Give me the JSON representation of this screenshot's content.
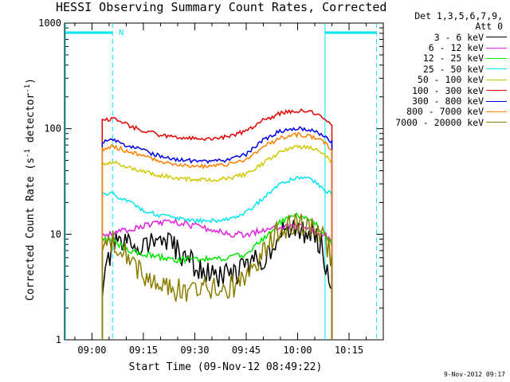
{
  "chart_data": {
    "type": "line",
    "title": "HESSI Observing Summary Count Rates, Corrected",
    "xlabel": "Start Time (09-Nov-12 08:49:22)",
    "ylabel_main": "Corrected Count Rate (s",
    "ylabel_sup1": "-1",
    "ylabel_mid": " detector",
    "ylabel_sup2": "-1",
    "ylabel_end": ")",
    "ylabel": "Corrected Count Rate (s-1 detector-1)",
    "yscale": "log",
    "ylim": [
      1,
      1000
    ],
    "yticks": [
      {
        "value": 1,
        "label": "1"
      },
      {
        "value": 10,
        "label": "10"
      },
      {
        "value": 100,
        "label": "100"
      },
      {
        "value": 1000,
        "label": "1000"
      }
    ],
    "xlim": [
      "08:52",
      "10:25"
    ],
    "xticks": [
      {
        "value": "09:00",
        "label": "09:00"
      },
      {
        "value": "09:15",
        "label": "09:15"
      },
      {
        "value": "09:30",
        "label": "09:30"
      },
      {
        "value": "09:45",
        "label": "09:45"
      },
      {
        "value": "10:00",
        "label": "10:00"
      },
      {
        "value": "10:15",
        "label": "10:15"
      }
    ],
    "legend_header": [
      "Det 1,3,5,6,7,9,",
      "Att 0"
    ],
    "legend_placement": "right",
    "flags": {
      "night_start": "09:06",
      "night_end": "10:08",
      "night_flag_label": "N",
      "saa_end": "09:03",
      "saa_start": "10:23",
      "bar_color": "#00e5ee"
    },
    "series": [
      {
        "name": "3 - 6 keV",
        "color": "#000000",
        "x": [
          "09:03",
          "09:06",
          "09:10",
          "09:15",
          "09:20",
          "09:25",
          "09:30",
          "09:35",
          "09:40",
          "09:45",
          "09:50",
          "09:55",
          "10:00",
          "10:05",
          "10:07",
          "10:10"
        ],
        "y": [
          3,
          8,
          8,
          8,
          9,
          7,
          5,
          4,
          4,
          5,
          6,
          10,
          11,
          10,
          8,
          3
        ]
      },
      {
        "name": "6 - 12 keV",
        "color": "#e020e0",
        "x": [
          "09:03",
          "09:06",
          "09:10",
          "09:15",
          "09:20",
          "09:25",
          "09:30",
          "09:35",
          "09:40",
          "09:45",
          "09:50",
          "09:55",
          "10:00",
          "10:05",
          "10:08",
          "10:10"
        ],
        "y": [
          10,
          10,
          11,
          12,
          13,
          13,
          12,
          11,
          10,
          10,
          11,
          12,
          12,
          11,
          10,
          9
        ]
      },
      {
        "name": "12 - 25 keV",
        "color": "#00e600",
        "x": [
          "09:03",
          "09:06",
          "09:10",
          "09:15",
          "09:20",
          "09:25",
          "09:30",
          "09:35",
          "09:40",
          "09:45",
          "09:50",
          "09:55",
          "10:00",
          "10:05",
          "10:08",
          "10:10"
        ],
        "y": [
          9,
          9,
          7,
          6.5,
          6,
          5.7,
          5.8,
          5.8,
          6,
          6.5,
          9,
          13,
          15,
          13,
          10,
          8
        ]
      },
      {
        "name": "25 - 50 keV",
        "color": "#00e5ee",
        "x": [
          "09:03",
          "09:06",
          "09:10",
          "09:15",
          "09:20",
          "09:25",
          "09:30",
          "09:35",
          "09:40",
          "09:45",
          "09:50",
          "09:55",
          "10:00",
          "10:05",
          "10:08",
          "10:10"
        ],
        "y": [
          24,
          24,
          21,
          17,
          15,
          14,
          13.5,
          13.5,
          14,
          16,
          22,
          30,
          35,
          32,
          26,
          24
        ]
      },
      {
        "name": "50 - 100 keV",
        "color": "#d2c800",
        "x": [
          "09:03",
          "09:06",
          "09:10",
          "09:15",
          "09:20",
          "09:25",
          "09:30",
          "09:35",
          "09:40",
          "09:45",
          "09:50",
          "09:55",
          "10:00",
          "10:05",
          "10:08",
          "10:10"
        ],
        "y": [
          46,
          48,
          44,
          39,
          36,
          34,
          33,
          33,
          34,
          37,
          47,
          60,
          68,
          64,
          55,
          48
        ]
      },
      {
        "name": "100 - 300 keV",
        "color": "#e00000",
        "x": [
          "09:03",
          "09:06",
          "09:10",
          "09:15",
          "09:20",
          "09:25",
          "09:30",
          "09:35",
          "09:40",
          "09:45",
          "09:50",
          "09:55",
          "10:00",
          "10:05",
          "10:08",
          "10:10"
        ],
        "y": [
          120,
          125,
          110,
          95,
          87,
          82,
          80,
          81,
          84,
          95,
          120,
          140,
          148,
          140,
          120,
          108
        ]
      },
      {
        "name": "300 - 800 keV",
        "color": "#0000e8",
        "x": [
          "09:03",
          "09:06",
          "09:10",
          "09:15",
          "09:20",
          "09:25",
          "09:30",
          "09:35",
          "09:40",
          "09:45",
          "09:50",
          "09:55",
          "10:00",
          "10:05",
          "10:08",
          "10:10"
        ],
        "y": [
          74,
          77,
          70,
          62,
          55,
          51,
          49,
          49,
          51,
          57,
          78,
          95,
          102,
          96,
          82,
          74
        ]
      },
      {
        "name": "800 - 7000 keV",
        "color": "#ff7f00",
        "x": [
          "09:03",
          "09:06",
          "09:10",
          "09:15",
          "09:20",
          "09:25",
          "09:30",
          "09:35",
          "09:40",
          "09:45",
          "09:50",
          "09:55",
          "10:00",
          "10:05",
          "10:08",
          "10:10"
        ],
        "y": [
          64,
          68,
          62,
          55,
          49,
          46,
          44,
          44,
          46,
          51,
          67,
          82,
          88,
          83,
          72,
          64
        ]
      },
      {
        "name": "7000 - 20000 keV",
        "color": "#8b7d00",
        "x": [
          "09:03",
          "09:06",
          "09:10",
          "09:15",
          "09:20",
          "09:25",
          "09:30",
          "09:35",
          "09:40",
          "09:45",
          "09:50",
          "09:55",
          "10:00",
          "10:05",
          "10:08",
          "10:10"
        ],
        "y": [
          8,
          9,
          7,
          4,
          3,
          3,
          3,
          3,
          3,
          4,
          7,
          11,
          13,
          12,
          9,
          6
        ]
      }
    ]
  },
  "timestamp": "9-Nov-2012 09:17"
}
